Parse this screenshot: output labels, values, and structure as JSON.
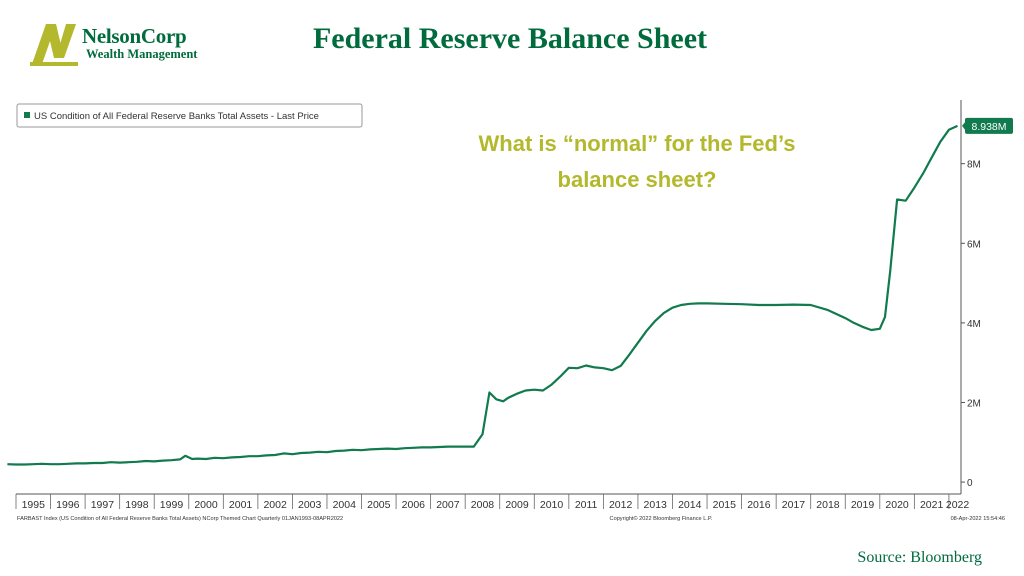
{
  "header": {
    "logo_name": "NelsonCorp",
    "logo_subtitle": "Wealth Management",
    "title": "Federal Reserve Balance Sheet"
  },
  "source": "Source:  Bloomberg",
  "colors": {
    "brand_green": "#006b3c",
    "line": "#117a4e",
    "callout": "#b3b82c"
  },
  "chart_data": {
    "type": "line",
    "legend": "US Condition of All Federal Reserve Banks Total Assets - Last Price",
    "legend_position": "top-left",
    "callout": [
      "What is “normal” for the Fed’s",
      "balance sheet?"
    ],
    "last_value_label": "8.938M",
    "ylim": [
      -0.3,
      9.6
    ],
    "y_ticks": [
      0,
      2,
      4,
      6,
      8
    ],
    "y_tick_labels": [
      "0",
      "2M",
      "4M",
      "6M",
      "8M"
    ],
    "xlim": [
      1995,
      2022.35
    ],
    "x_tick_labels": [
      "1995",
      "1996",
      "1997",
      "1998",
      "1999",
      "2000",
      "2001",
      "2002",
      "2003",
      "2004",
      "2005",
      "2006",
      "2007",
      "2008",
      "2009",
      "2010",
      "2011",
      "2012",
      "2013",
      "2014",
      "2015",
      "2016",
      "2017",
      "2018",
      "2019",
      "2020",
      "2021",
      "2022"
    ],
    "footer_left": "FARBAST Index (US Condition of All Federal Reserve Banks Total Assets) NCorp Themed Chart  Quarterly 01JAN1993-08APR2022",
    "footer_center": "Copyright© 2022 Bloomberg Finance L.P.",
    "footer_right": "08-Apr-2022 15:54:46",
    "series": [
      {
        "x": [
          1994.75,
          1995.0,
          1995.25,
          1995.5,
          1995.75,
          1996.0,
          1996.25,
          1996.5,
          1996.75,
          1997.0,
          1997.25,
          1997.5,
          1997.75,
          1998.0,
          1998.25,
          1998.5,
          1998.75,
          1999.0,
          1999.25,
          1999.5,
          1999.75,
          1999.9,
          2000.1,
          2000.25,
          2000.5,
          2000.75,
          2001.0,
          2001.25,
          2001.5,
          2001.75,
          2002.0,
          2002.25,
          2002.5,
          2002.75,
          2003.0,
          2003.25,
          2003.5,
          2003.75,
          2004.0,
          2004.25,
          2004.5,
          2004.75,
          2005.0,
          2005.25,
          2005.5,
          2005.75,
          2006.0,
          2006.25,
          2006.5,
          2006.75,
          2007.0,
          2007.25,
          2007.5,
          2007.75,
          2008.0,
          2008.25,
          2008.5,
          2008.7,
          2008.9,
          2009.1,
          2009.25,
          2009.5,
          2009.75,
          2010.0,
          2010.25,
          2010.5,
          2010.75,
          2011.0,
          2011.25,
          2011.5,
          2011.75,
          2012.0,
          2012.25,
          2012.5,
          2012.75,
          2013.0,
          2013.25,
          2013.5,
          2013.75,
          2014.0,
          2014.25,
          2014.5,
          2014.75,
          2015.0,
          2015.5,
          2016.0,
          2016.5,
          2017.0,
          2017.5,
          2018.0,
          2018.5,
          2019.0,
          2019.25,
          2019.5,
          2019.75,
          2020.0,
          2020.15,
          2020.3,
          2020.5,
          2020.75,
          2021.0,
          2021.25,
          2021.5,
          2021.75,
          2022.0,
          2022.25
        ],
        "y": [
          0.45,
          0.44,
          0.44,
          0.45,
          0.46,
          0.45,
          0.45,
          0.46,
          0.47,
          0.47,
          0.48,
          0.48,
          0.5,
          0.49,
          0.5,
          0.51,
          0.53,
          0.52,
          0.54,
          0.55,
          0.57,
          0.66,
          0.58,
          0.59,
          0.58,
          0.61,
          0.6,
          0.62,
          0.63,
          0.65,
          0.65,
          0.67,
          0.68,
          0.72,
          0.7,
          0.73,
          0.74,
          0.76,
          0.75,
          0.78,
          0.79,
          0.81,
          0.8,
          0.82,
          0.83,
          0.84,
          0.83,
          0.85,
          0.86,
          0.87,
          0.87,
          0.88,
          0.89,
          0.89,
          0.89,
          0.89,
          1.2,
          2.25,
          2.08,
          2.03,
          2.12,
          2.22,
          2.3,
          2.32,
          2.3,
          2.45,
          2.65,
          2.87,
          2.86,
          2.93,
          2.88,
          2.86,
          2.81,
          2.92,
          3.2,
          3.5,
          3.8,
          4.05,
          4.25,
          4.38,
          4.45,
          4.48,
          4.49,
          4.49,
          4.48,
          4.47,
          4.45,
          4.45,
          4.46,
          4.45,
          4.32,
          4.12,
          4.0,
          3.9,
          3.82,
          3.85,
          4.15,
          5.3,
          7.1,
          7.07,
          7.4,
          7.75,
          8.15,
          8.55,
          8.85,
          8.95
        ]
      }
    ]
  }
}
